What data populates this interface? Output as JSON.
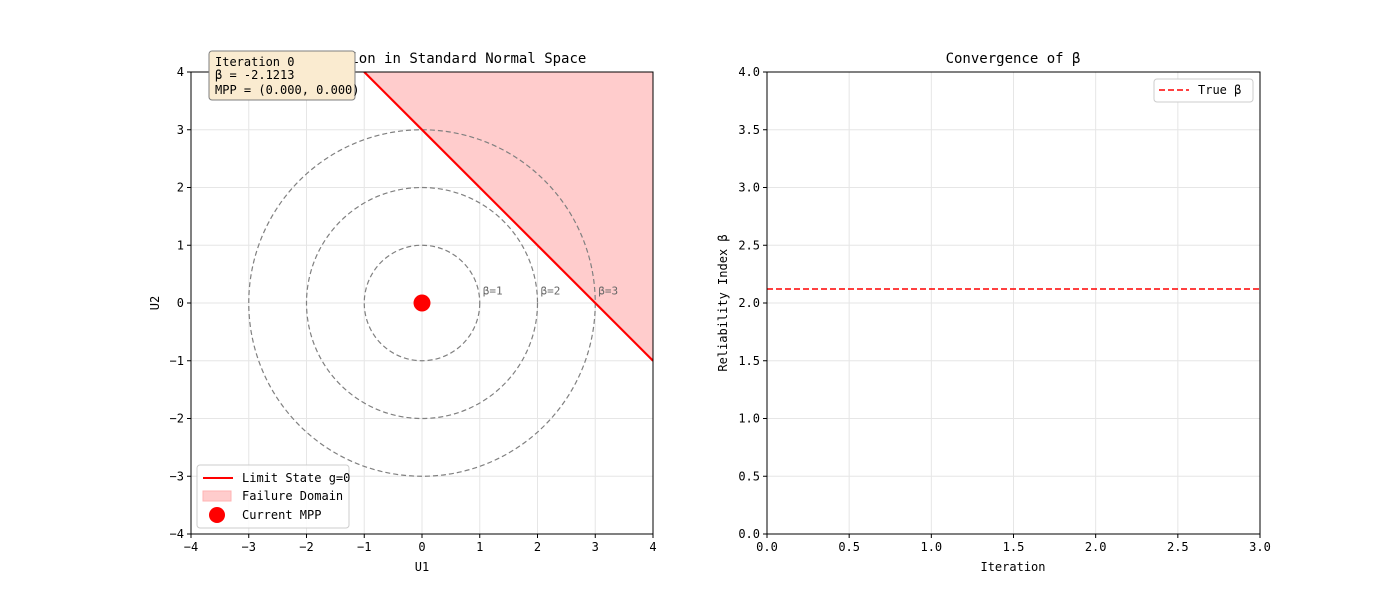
{
  "colors": {
    "limit_state": "#ff0000",
    "failure_fill": "#ffcccc",
    "mpp": "#ff0000",
    "circle": "#808080",
    "true_beta": "#ff0000",
    "grid": "#e6e6e6",
    "infobox_fill": "#faebd0",
    "infobox_edge": "#7f7f7f"
  },
  "chart_data": [
    {
      "type": "line",
      "title": "FORM Iteration in Standard Normal Space",
      "xlabel": "U1",
      "ylabel": "U2",
      "xlim": [
        -4,
        4
      ],
      "ylim": [
        -4,
        4
      ],
      "xticks": [
        "−4",
        "−3",
        "−2",
        "−1",
        "0",
        "1",
        "2",
        "3",
        "4"
      ],
      "yticks": [
        "−4",
        "−3",
        "−2",
        "−1",
        "0",
        "1",
        "2",
        "3",
        "4"
      ],
      "grid": true,
      "circles": [
        {
          "radius": 1,
          "label": "β=1"
        },
        {
          "radius": 2,
          "label": "β=2"
        },
        {
          "radius": 3,
          "label": "β=3"
        }
      ],
      "limit_state_line": {
        "x": [
          -1,
          4
        ],
        "y": [
          4,
          -1
        ]
      },
      "failure_domain": {
        "x": [
          -1,
          4,
          4
        ],
        "y": [
          4,
          4,
          -1
        ]
      },
      "mpp": {
        "x": 0.0,
        "y": 0.0
      },
      "info_box": {
        "line1": "Iteration 0",
        "line2": "β = -2.1213",
        "line3": "MPP = (0.000, 0.000)"
      },
      "legend": {
        "placement": "lower-left",
        "entries": [
          {
            "label": "Limit State g=0",
            "kind": "line"
          },
          {
            "label": "Failure Domain",
            "kind": "patch"
          },
          {
            "label": "Current MPP",
            "kind": "marker"
          }
        ]
      }
    },
    {
      "type": "line",
      "title": "Convergence of β",
      "xlabel": "Iteration",
      "ylabel": "Reliability Index β",
      "xlim": [
        0,
        3
      ],
      "ylim": [
        0,
        4
      ],
      "xticks": [
        "0.0",
        "0.5",
        "1.0",
        "1.5",
        "2.0",
        "2.5",
        "3.0"
      ],
      "yticks": [
        "0.0",
        "0.5",
        "1.0",
        "1.5",
        "2.0",
        "2.5",
        "3.0",
        "3.5",
        "4.0"
      ],
      "grid": true,
      "series": [
        {
          "name": "True β",
          "type": "hline",
          "y": 2.1213,
          "style": "dashed"
        }
      ],
      "legend": {
        "placement": "top-right",
        "entries": [
          {
            "label": "True β",
            "kind": "dashed-line"
          }
        ]
      }
    }
  ]
}
